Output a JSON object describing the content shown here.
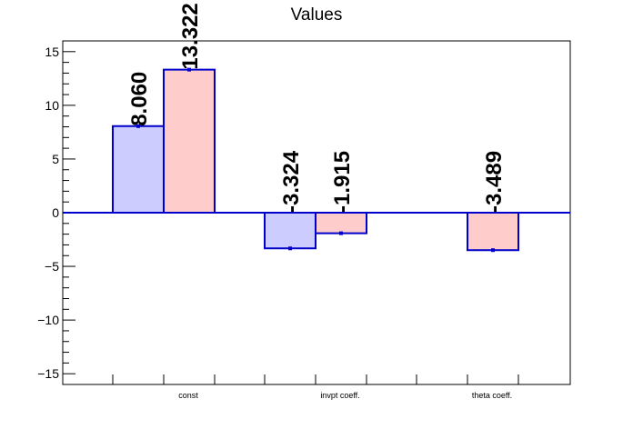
{
  "chart_data": {
    "type": "bar",
    "title": "Values",
    "xlabel": "",
    "ylabel": "",
    "categories": [
      "const",
      "invpt coeff.",
      "theta coeff."
    ],
    "ylim": [
      -16,
      16
    ],
    "yticks": [
      -15,
      -10,
      -5,
      0,
      5,
      10,
      15
    ],
    "ytick_labels": [
      "−15",
      "−10",
      "−5",
      "0",
      "5",
      "10",
      "15"
    ],
    "grid": false,
    "series": [
      {
        "fill": "#ccccff",
        "stroke": "#0000cc",
        "values": [
          8.06,
          -3.324,
          null
        ],
        "labels": [
          "8.060",
          "-3.324",
          ""
        ]
      },
      {
        "fill": "#ffcccc",
        "stroke": "#0000cc",
        "values": [
          13.322,
          -1.915,
          -3.489
        ],
        "labels": [
          "13.322",
          "-1.915",
          "-3.489"
        ]
      }
    ],
    "zero_line_color": "#0000cc"
  }
}
